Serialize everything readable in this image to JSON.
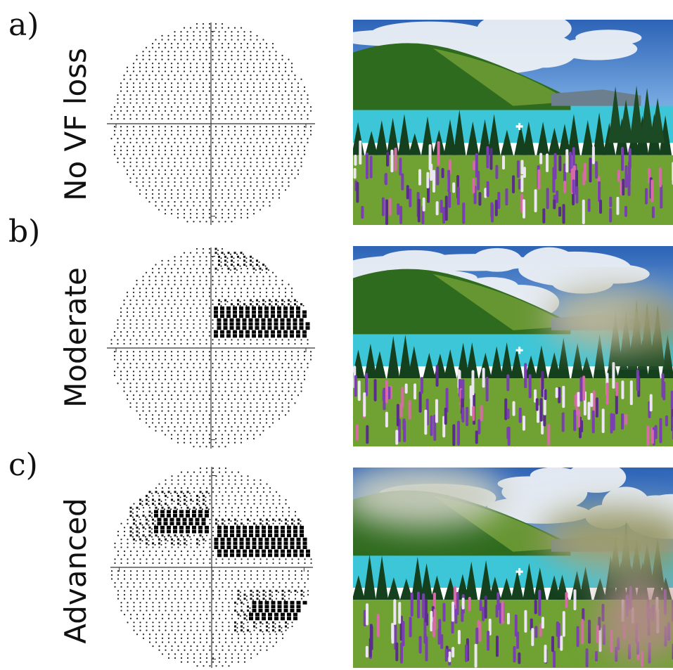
{
  "rows": [
    {
      "letter": "a)",
      "label": "No VF loss",
      "defects": []
    },
    {
      "letter": "b)",
      "label": "Moderate",
      "defects": [
        {
          "quadrant": "superior-temporal-edge",
          "severity": "mild"
        },
        {
          "quadrant": "upper-right-top",
          "severity": "moderate"
        },
        {
          "quadrant": "upper-right-band",
          "severity": "severe"
        }
      ]
    },
    {
      "letter": "c)",
      "label": "Advanced",
      "defects": [
        {
          "quadrant": "upper-left",
          "severity": "severe"
        },
        {
          "quadrant": "upper-right-band",
          "severity": "severe"
        },
        {
          "quadrant": "lower-right",
          "severity": "severe"
        }
      ]
    }
  ],
  "colors": {
    "sky": "#3d78c8",
    "cloud": "#f2f4f7",
    "hill": "#2f6b1e",
    "hill_light": "#7da83a",
    "lake": "#3cc6d8",
    "tree": "#14401e",
    "meadow": "#6fa232",
    "lupin_purple": "#7a3fb0",
    "lupin_pink": "#d86aa8",
    "lupin_white": "#ece6f2",
    "fixation": "#ffffff"
  }
}
